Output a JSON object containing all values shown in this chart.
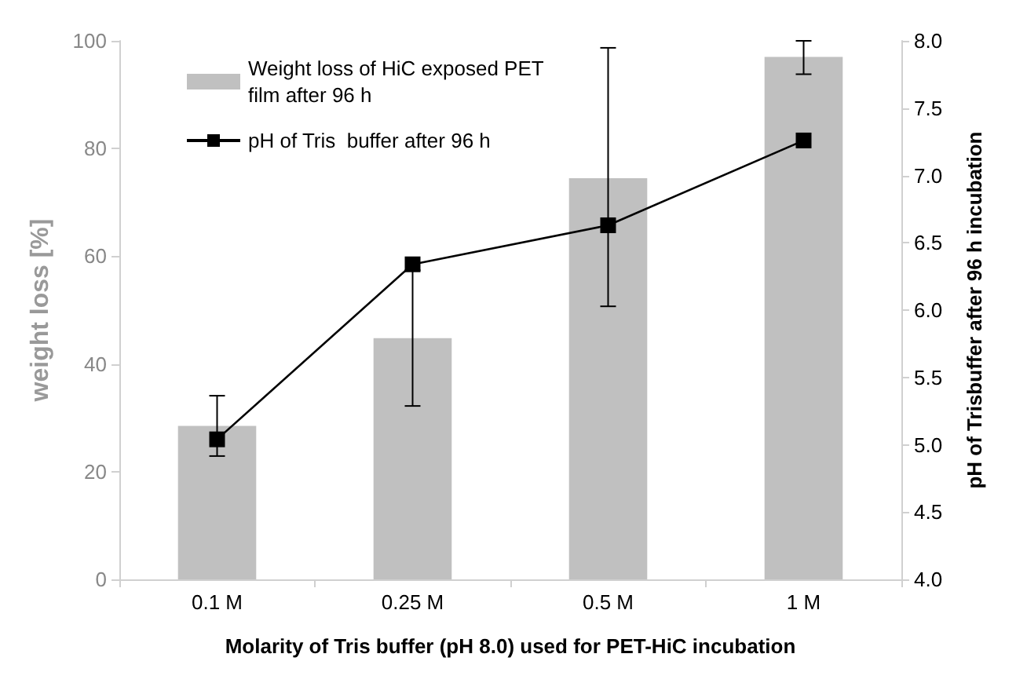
{
  "chart_data": {
    "type": "bar",
    "categories": [
      "0.1 M",
      "0.25 M",
      "0.5 M",
      "1 M"
    ],
    "xlabel": "Molarity of Tris buffer (pH 8.0) used for PET-HiC incubation",
    "ylabel": "weight loss [%]",
    "y2label": "pH of Trisbuffer after 96 h incubation",
    "series": [
      {
        "name": "Weight loss of HiC exposed PET film after 96 h",
        "color": "#c0c0c0",
        "values": [
          28.5,
          44.8,
          74.5,
          97.0
        ],
        "errors": [
          [
            22.9,
            34.1
          ],
          12.6,
          [
            50.7,
            98.7
          ],
          [
            93.8,
            100
          ]
        ]
      },
      {
        "name": "pH of Tris  buffer after 96 h",
        "type": "line",
        "axis": "y2",
        "color": "#000000",
        "values": [
          5.04,
          6.34,
          6.63,
          7.26
        ],
        "marker": "square"
      }
    ],
    "ylim": [
      0,
      100
    ],
    "yticks": [
      0,
      20,
      40,
      60,
      80,
      100
    ],
    "y2lim": [
      4.0,
      8.0
    ],
    "y2ticks": [
      {
        "value": 4,
        "label": "4.0"
      },
      {
        "value": 4.5,
        "label": "4.5"
      },
      {
        "value": 5,
        "label": "5.0"
      },
      {
        "value": 5.5,
        "label": "5.5"
      },
      {
        "value": 6,
        "label": "6.0"
      },
      {
        "value": 6.5,
        "label": "6.5"
      },
      {
        "value": 7,
        "label": "7.0"
      },
      {
        "value": 7.5,
        "label": "7.5"
      },
      {
        "value": 8,
        "label": "8.0"
      }
    ],
    "grid": false,
    "legend": "top left"
  }
}
